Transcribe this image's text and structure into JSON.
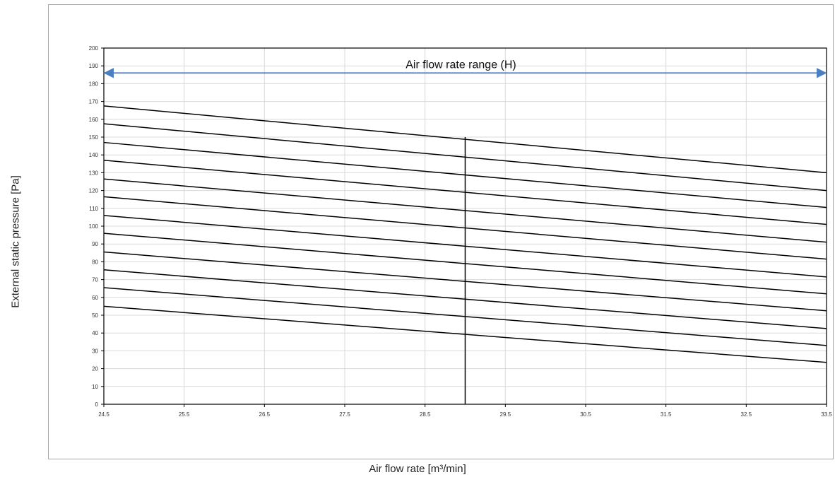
{
  "chart_data": {
    "type": "line",
    "title": "",
    "xlabel": "Air flow rate [m³/min]",
    "ylabel": "External static pressure [Pa]",
    "xlim": [
      24.5,
      33.5
    ],
    "ylim": [
      0,
      200
    ],
    "x_ticks": [
      "24.5",
      "25.5",
      "26.5",
      "27.5",
      "28.5",
      "29.5",
      "30.5",
      "31.5",
      "32.5",
      "33.5"
    ],
    "y_ticks": [
      "0",
      "10",
      "20",
      "30",
      "40",
      "50",
      "60",
      "70",
      "80",
      "90",
      "100",
      "110",
      "120",
      "130",
      "140",
      "150",
      "160",
      "170",
      "180",
      "190",
      "200"
    ],
    "grid": true,
    "legend": "none",
    "series": [
      {
        "x": [
          24.5,
          33.5
        ],
        "y": [
          167.5,
          130
        ]
      },
      {
        "x": [
          24.5,
          33.5
        ],
        "y": [
          157.5,
          120
        ]
      },
      {
        "x": [
          24.5,
          33.5
        ],
        "y": [
          147,
          110.5
        ]
      },
      {
        "x": [
          24.5,
          33.5
        ],
        "y": [
          137,
          101
        ]
      },
      {
        "x": [
          24.5,
          33.5
        ],
        "y": [
          126.5,
          91
        ]
      },
      {
        "x": [
          24.5,
          33.5
        ],
        "y": [
          116.5,
          81.5
        ]
      },
      {
        "x": [
          24.5,
          33.5
        ],
        "y": [
          106,
          71.5
        ]
      },
      {
        "x": [
          24.5,
          33.5
        ],
        "y": [
          96,
          62
        ]
      },
      {
        "x": [
          24.5,
          33.5
        ],
        "y": [
          85.5,
          52.5
        ]
      },
      {
        "x": [
          24.5,
          33.5
        ],
        "y": [
          75.5,
          42.5
        ]
      },
      {
        "x": [
          24.5,
          33.5
        ],
        "y": [
          65.5,
          33
        ]
      },
      {
        "x": [
          24.5,
          33.5
        ],
        "y": [
          55,
          23.5
        ]
      }
    ],
    "rated_point": {
      "x": 29.0,
      "y": 150
    },
    "annotation": {
      "text": "Air flow rate range (H)",
      "x_start": 24.5,
      "x_end": 33.5,
      "y": 186,
      "color": "#4a7fc1"
    },
    "colors": {
      "line": "#000000",
      "grid": "#d9d9d9",
      "arrow": "#4a7fc1"
    }
  }
}
